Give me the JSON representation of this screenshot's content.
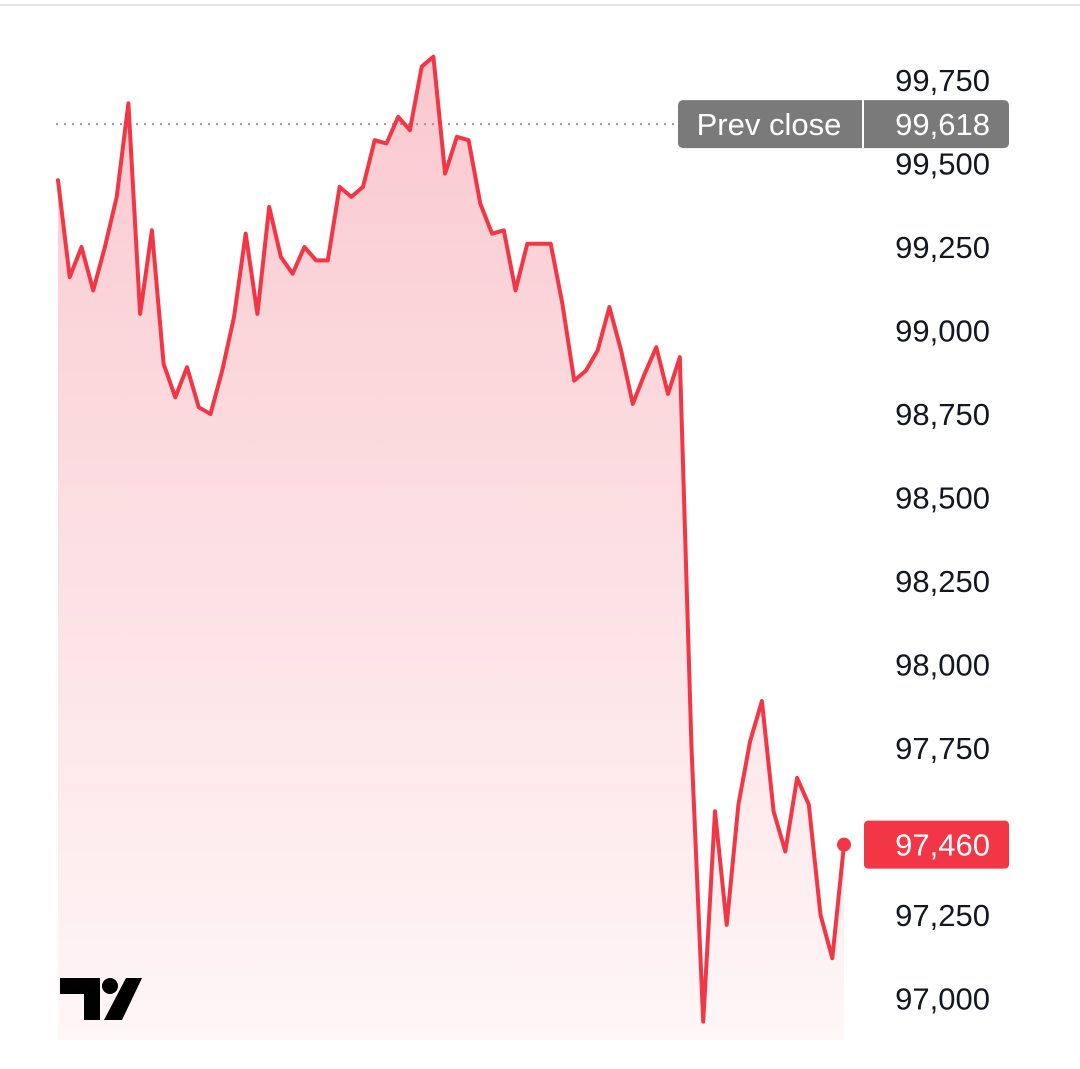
{
  "chart_data": {
    "type": "area",
    "y_ticks": [
      "99,750",
      "99,500",
      "99,250",
      "99,000",
      "98,750",
      "98,500",
      "98,250",
      "98,000",
      "97,750",
      "97,500",
      "97,250",
      "97,000"
    ],
    "y_tick_values": [
      99750,
      99500,
      99250,
      99000,
      98750,
      98500,
      98250,
      98000,
      97750,
      97500,
      97250,
      97000
    ],
    "ylim": [
      96875,
      99870
    ],
    "grid": false,
    "prev_close": {
      "label": "Prev close",
      "value_label": "99,618",
      "value": 99618
    },
    "last_price": {
      "value_label": "97,460",
      "value": 97460
    },
    "series": [
      {
        "values": [
          99450,
          99160,
          99250,
          99120,
          99250,
          99400,
          99680,
          99050,
          99300,
          98900,
          98800,
          98890,
          98770,
          98750,
          98880,
          99040,
          99290,
          99050,
          99370,
          99220,
          99170,
          99250,
          99210,
          99210,
          99430,
          99400,
          99430,
          99570,
          99560,
          99640,
          99600,
          99790,
          99820,
          99470,
          99580,
          99570,
          99380,
          99290,
          99300,
          99120,
          99260,
          99260,
          99260,
          99080,
          98850,
          98880,
          98940,
          99070,
          98940,
          98780,
          98870,
          98950,
          98810,
          98920,
          97750,
          96930,
          97560,
          97220,
          97580,
          97770,
          97890,
          97560,
          97440,
          97660,
          97580,
          97250,
          97120,
          97460
        ]
      }
    ],
    "colors": {
      "line": "#f23645",
      "area_top": "#f9c9cf",
      "area_bottom": "#fff6f7",
      "prev_badge": "#7a7a7a",
      "last_badge": "#f23645",
      "prev_line": "#9a9a9a"
    },
    "logo_icon": "tradingview-logo-icon"
  }
}
